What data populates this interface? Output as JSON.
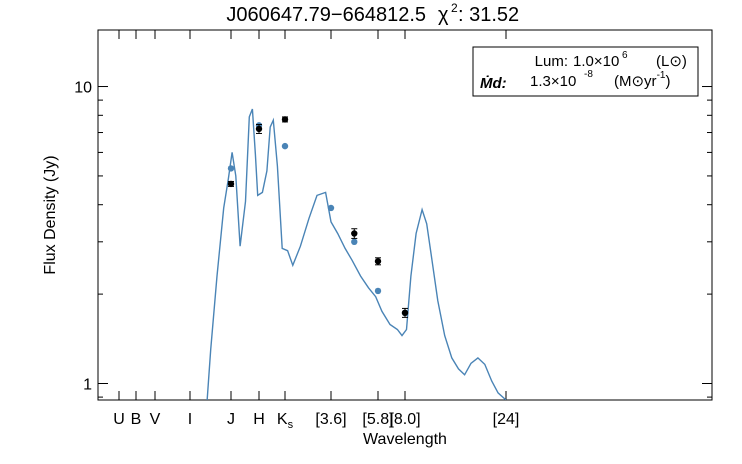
{
  "chart_data": {
    "type": "line",
    "title_prefix": "J060647.79−664812.5",
    "title_chi_symbol": "χ",
    "title_chi_exp": "2",
    "title_chi_value": ": 31.52",
    "ylabel": "Flux Density (Jy)",
    "xlabel": "Wavelength",
    "y_scale": "log",
    "ylim": [
      0.88,
      15.5
    ],
    "y_tick_labels": [
      {
        "value": 1,
        "label": "1"
      },
      {
        "value": 10,
        "label": "10"
      }
    ],
    "x_band_labels": [
      {
        "label": "U",
        "sub": ""
      },
      {
        "label": "B",
        "sub": ""
      },
      {
        "label": "V",
        "sub": ""
      },
      {
        "label": "I",
        "sub": ""
      },
      {
        "label": "J",
        "sub": ""
      },
      {
        "label": "H",
        "sub": ""
      },
      {
        "label": "K",
        "sub": "s"
      },
      {
        "label": "[3.6]",
        "sub": ""
      },
      {
        "label": "[5.8]",
        "sub": ""
      },
      {
        "label": "[8.0]",
        "sub": ""
      },
      {
        "label": "[24]",
        "sub": ""
      }
    ],
    "legend": {
      "placement": "top-right",
      "lum_label": "Lum:",
      "lum_mantissa": "1.0×10",
      "lum_exp": "6",
      "lum_unit": "(L⊙)",
      "mdot_label": "Ṁd:",
      "mdot_mantissa": "1.3×10",
      "mdot_exp": "-8",
      "mdot_unit": "(M⊙yr",
      "mdot_unit_exp": "-1",
      "mdot_unit_close": ")"
    },
    "model_color": "#4a84b6",
    "observed_color": "#000000",
    "model_curve": {
      "name": "",
      "points": [
        [
          0.9,
          0.5
        ],
        [
          0.99,
          1.3
        ],
        [
          1.06,
          2.3
        ],
        [
          1.14,
          3.9
        ],
        [
          1.2,
          4.9
        ],
        [
          1.25,
          6.0
        ],
        [
          1.3,
          5.0
        ],
        [
          1.36,
          2.9
        ],
        [
          1.44,
          4.1
        ],
        [
          1.5,
          7.9
        ],
        [
          1.55,
          8.4
        ],
        [
          1.6,
          5.9
        ],
        [
          1.64,
          4.3
        ],
        [
          1.72,
          4.4
        ],
        [
          1.8,
          5.2
        ],
        [
          1.86,
          7.3
        ],
        [
          1.92,
          7.7
        ],
        [
          2.0,
          5.4
        ],
        [
          2.1,
          2.85
        ],
        [
          2.22,
          2.8
        ],
        [
          2.35,
          2.5
        ],
        [
          2.55,
          2.9
        ],
        [
          2.8,
          3.6
        ],
        [
          3.05,
          4.3
        ],
        [
          3.35,
          4.4
        ],
        [
          3.55,
          3.5
        ],
        [
          3.8,
          3.2
        ],
        [
          4.1,
          2.85
        ],
        [
          4.4,
          2.6
        ],
        [
          4.8,
          2.3
        ],
        [
          5.2,
          2.1
        ],
        [
          5.6,
          1.96
        ],
        [
          6.0,
          1.75
        ],
        [
          6.6,
          1.58
        ],
        [
          7.2,
          1.52
        ],
        [
          7.6,
          1.45
        ],
        [
          8.0,
          1.52
        ],
        [
          8.4,
          2.3
        ],
        [
          8.9,
          3.2
        ],
        [
          9.5,
          3.85
        ],
        [
          10.0,
          3.45
        ],
        [
          10.6,
          2.6
        ],
        [
          11.3,
          1.9
        ],
        [
          12.2,
          1.45
        ],
        [
          13.2,
          1.22
        ],
        [
          14.2,
          1.12
        ],
        [
          15.2,
          1.07
        ],
        [
          16.3,
          1.17
        ],
        [
          17.6,
          1.22
        ],
        [
          19.0,
          1.16
        ],
        [
          20.5,
          1.02
        ],
        [
          22.0,
          0.93
        ],
        [
          24.0,
          0.88
        ]
      ]
    },
    "model_points": [
      {
        "x": 1.235,
        "y": 5.3
      },
      {
        "x": 1.662,
        "y": 7.4
      },
      {
        "x": 2.159,
        "y": 6.3
      },
      {
        "x": 3.55,
        "y": 3.9
      },
      {
        "x": 4.5,
        "y": 3.0
      },
      {
        "x": 5.73,
        "y": 2.05
      },
      {
        "x": 7.87,
        "y": 1.73
      }
    ],
    "observed_points": [
      {
        "x": 1.235,
        "y": 4.7,
        "err": 0.09
      },
      {
        "x": 1.662,
        "y": 7.2,
        "err": 0.25
      },
      {
        "x": 2.159,
        "y": 7.75,
        "err": 0.15
      },
      {
        "x": 4.5,
        "y": 3.2,
        "err": 0.12
      },
      {
        "x": 5.73,
        "y": 2.58,
        "err": 0.07
      },
      {
        "x": 7.87,
        "y": 1.73,
        "err": 0.06
      }
    ]
  }
}
